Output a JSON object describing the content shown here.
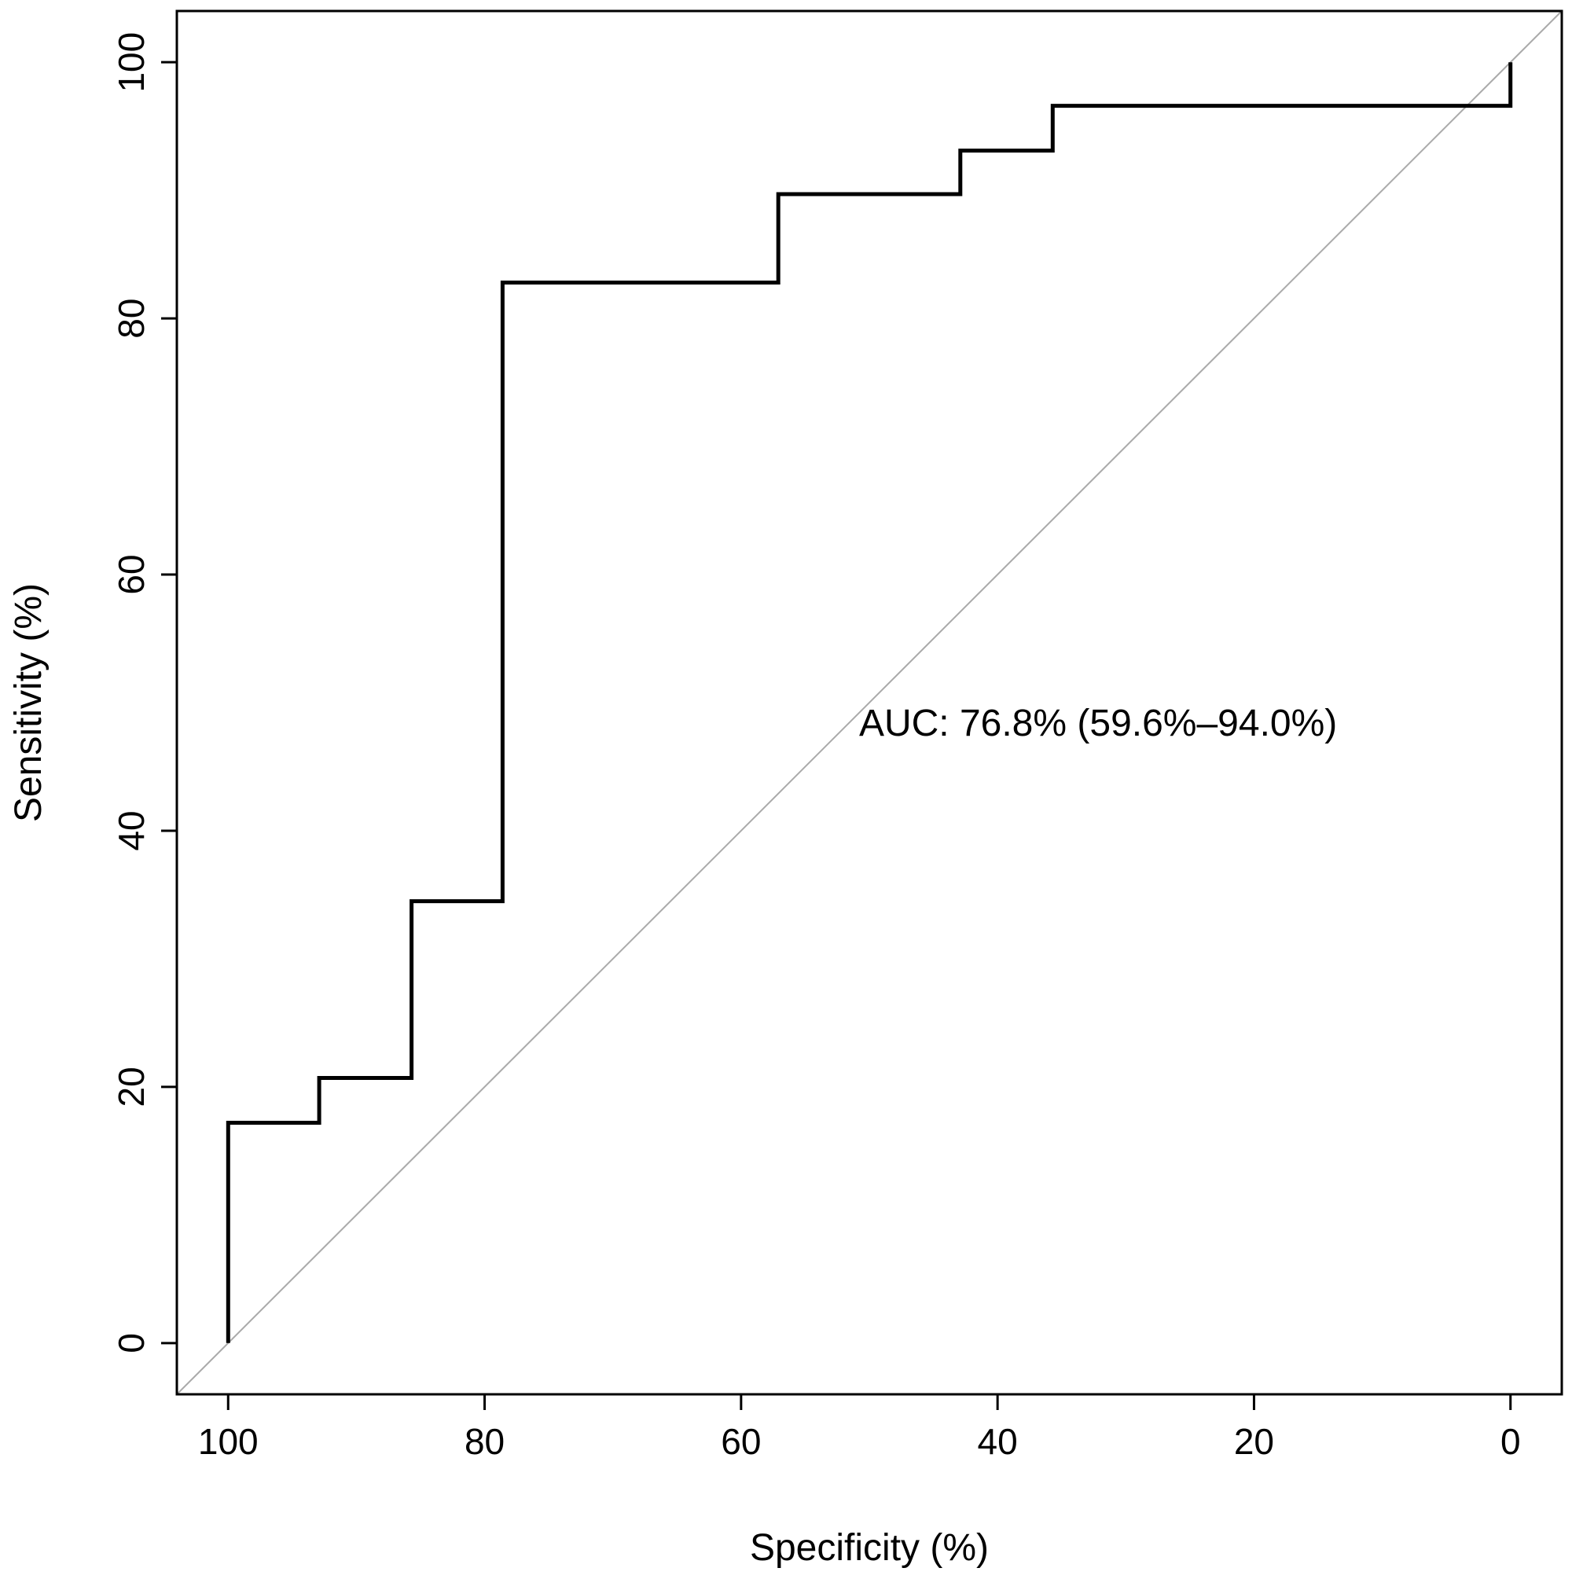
{
  "chart_data": {
    "type": "line",
    "title": "",
    "xlabel": "Specificity (%)",
    "ylabel": "Sensitivity (%)",
    "x_reversed": true,
    "xlim": [
      104,
      -4
    ],
    "ylim": [
      -4,
      104
    ],
    "xticks": [
      100,
      80,
      60,
      40,
      20,
      0
    ],
    "yticks": [
      0,
      20,
      40,
      60,
      80,
      100
    ],
    "grid": false,
    "legend": "none",
    "series": [
      {
        "color": "#000000",
        "points": [
          [
            100,
            0
          ],
          [
            100,
            17.2
          ],
          [
            92.9,
            17.2
          ],
          [
            92.9,
            20.7
          ],
          [
            85.7,
            20.7
          ],
          [
            85.7,
            34.5
          ],
          [
            78.6,
            34.5
          ],
          [
            78.6,
            82.8
          ],
          [
            57.1,
            82.8
          ],
          [
            57.1,
            89.7
          ],
          [
            42.9,
            89.7
          ],
          [
            42.9,
            93.1
          ],
          [
            35.7,
            93.1
          ],
          [
            35.7,
            96.6
          ],
          [
            0,
            96.6
          ],
          [
            0,
            100
          ]
        ]
      }
    ],
    "reference_line": {
      "from": [
        104,
        -4
      ],
      "to": [
        -4,
        104
      ],
      "color": "#aaaaaa"
    },
    "annotations": [
      {
        "text": "AUC: 76.8% (59.6%–94.0%)",
        "x": 50.8,
        "y": 48.4
      }
    ]
  }
}
